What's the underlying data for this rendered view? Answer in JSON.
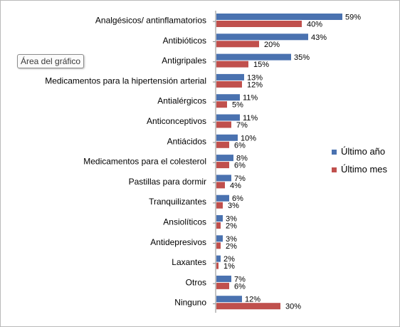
{
  "tooltip": "Área del gráfico",
  "chart_data": {
    "type": "bar",
    "orientation": "horizontal",
    "categories": [
      "Analgésicos/ antinflamatorios",
      "Antibióticos",
      "Antigripales",
      "Medicamentos para la hipertensión arterial",
      "Antialérgicos",
      "Anticonceptivos",
      "Antiácidos",
      "Medicamentos para el colesterol",
      "Pastillas para dormir",
      "Tranquilizantes",
      "Ansiolíticos",
      "Antidepresivos",
      "Laxantes",
      "Otros",
      "Ninguno"
    ],
    "series": [
      {
        "name": "Último año",
        "color": "#4a72b0",
        "values": [
          59,
          43,
          35,
          13,
          11,
          11,
          10,
          8,
          7,
          6,
          3,
          3,
          2,
          7,
          12
        ],
        "labels": [
          "59%",
          "43%",
          "35%",
          "13%",
          "11%",
          "11%",
          "10%",
          "8%",
          "7%",
          "6%",
          "3%",
          "3%",
          "2%",
          "7%",
          "12%"
        ]
      },
      {
        "name": "Último mes",
        "color": "#c0504d",
        "values": [
          40,
          20,
          15,
          12,
          5,
          7,
          6,
          6,
          4,
          3,
          2,
          2,
          1,
          6,
          30
        ],
        "labels": [
          "40%",
          "20%",
          "15%",
          "12%",
          "5%",
          "7%",
          "6%",
          "6%",
          "4%",
          "3%",
          "2%",
          "2%",
          "1%",
          "6%",
          "30%"
        ]
      }
    ],
    "xlim": [
      0,
      62
    ],
    "grid": false,
    "axis_line": true,
    "legend_position": "right"
  }
}
